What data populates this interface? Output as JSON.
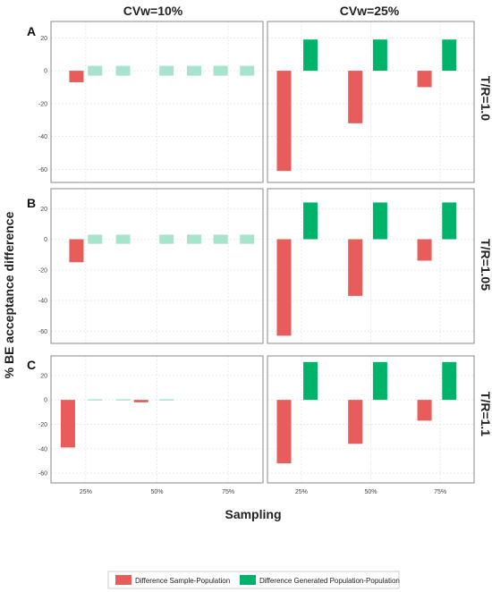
{
  "colors": {
    "sample_population": "#e85c5c",
    "generated_population": "#00b36b",
    "generated_population_small": "#a8e4cc",
    "grid": "#e6e6e6",
    "axis": "#888888"
  },
  "labels": {
    "ylabel": "% BE acceptance difference",
    "xlabel": "Sampling",
    "columns": [
      "CVw=10%",
      "CVw=25%"
    ],
    "rows": [
      "T/R=1.0",
      "T/R=1.05",
      "T/R=1.1"
    ],
    "panel_letters": [
      "A",
      "B",
      "C"
    ]
  },
  "legend": {
    "items": [
      {
        "label": "Difference Sample-Population",
        "color_key": "sample_population"
      },
      {
        "label": "Difference Generated Population-Population",
        "color_key": "generated_population"
      }
    ],
    "placement": "bottom"
  },
  "chart_data": {
    "type": "bar",
    "layout": "facet-grid",
    "categories": [
      "25%",
      "50%",
      "75%"
    ],
    "grid": true,
    "ylims": [
      [
        -68,
        30
      ],
      [
        -68,
        33
      ],
      [
        -68,
        36
      ]
    ],
    "yticks": [
      [
        -60,
        -40,
        -20,
        0,
        20
      ],
      [
        -60,
        -40,
        -20,
        0,
        20
      ],
      [
        -60,
        -40,
        -20,
        0,
        20
      ]
    ],
    "panels": [
      {
        "row": 0,
        "col": 0,
        "sample_population": [
          -7
        ],
        "generated_population": [
          3,
          3,
          3,
          3,
          3,
          3
        ],
        "generated_style": "small"
      },
      {
        "row": 0,
        "col": 1,
        "sample_population": [
          -61,
          -32,
          -10
        ],
        "generated_population": [
          19,
          19,
          19
        ],
        "generated_style": "full"
      },
      {
        "row": 1,
        "col": 0,
        "sample_population": [
          -15
        ],
        "generated_population": [
          3,
          3,
          3,
          3,
          3,
          3
        ],
        "generated_style": "small"
      },
      {
        "row": 1,
        "col": 1,
        "sample_population": [
          -63,
          -37,
          -14
        ],
        "generated_population": [
          24,
          24,
          24
        ],
        "generated_style": "full"
      },
      {
        "row": 2,
        "col": 0,
        "sample_population": [
          -39,
          -2,
          0
        ],
        "generated_population": [
          0.3,
          0.3,
          0.3
        ],
        "generated_style": "small"
      },
      {
        "row": 2,
        "col": 1,
        "sample_population": [
          -52,
          -36,
          -17
        ],
        "generated_population": [
          31,
          31,
          31
        ],
        "generated_style": "full"
      }
    ]
  }
}
